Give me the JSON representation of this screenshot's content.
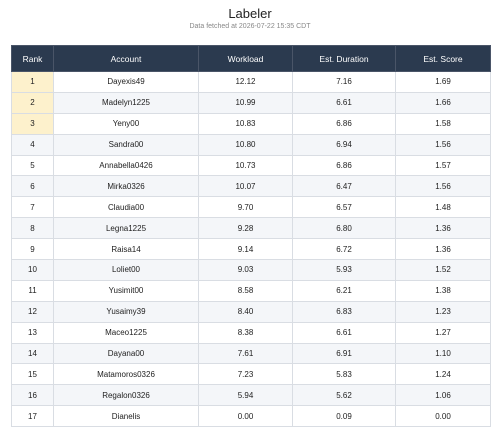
{
  "header": {
    "title": "Labeler",
    "subtitle": "Data fetched at 2026-07-22 15:35 CDT"
  },
  "table": {
    "columns": [
      "Rank",
      "Account",
      "Workload",
      "Est. Duration",
      "Est. Score"
    ],
    "rows": [
      [
        "1",
        "Dayexis49",
        "12.12",
        "7.16",
        "1.69"
      ],
      [
        "2",
        "Madelyn1225",
        "10.99",
        "6.61",
        "1.66"
      ],
      [
        "3",
        "Yeny00",
        "10.83",
        "6.86",
        "1.58"
      ],
      [
        "4",
        "Sandra00",
        "10.80",
        "6.94",
        "1.56"
      ],
      [
        "5",
        "Annabella0426",
        "10.73",
        "6.86",
        "1.57"
      ],
      [
        "6",
        "Mirka0326",
        "10.07",
        "6.47",
        "1.56"
      ],
      [
        "7",
        "Claudia00",
        "9.70",
        "6.57",
        "1.48"
      ],
      [
        "8",
        "Legna1225",
        "9.28",
        "6.80",
        "1.36"
      ],
      [
        "9",
        "Raisa14",
        "9.14",
        "6.72",
        "1.36"
      ],
      [
        "10",
        "Loliet00",
        "9.03",
        "5.93",
        "1.52"
      ],
      [
        "11",
        "Yusimit00",
        "8.58",
        "6.21",
        "1.38"
      ],
      [
        "12",
        "Yusaimy39",
        "8.40",
        "6.83",
        "1.23"
      ],
      [
        "13",
        "Maceo1225",
        "8.38",
        "6.61",
        "1.27"
      ],
      [
        "14",
        "Dayana00",
        "7.61",
        "6.91",
        "1.10"
      ],
      [
        "15",
        "Matamoros0326",
        "7.23",
        "5.83",
        "1.24"
      ],
      [
        "16",
        "Regalon0326",
        "5.94",
        "5.62",
        "1.06"
      ],
      [
        "17",
        "Dianelis",
        "0.00",
        "0.09",
        "0.00"
      ]
    ]
  }
}
